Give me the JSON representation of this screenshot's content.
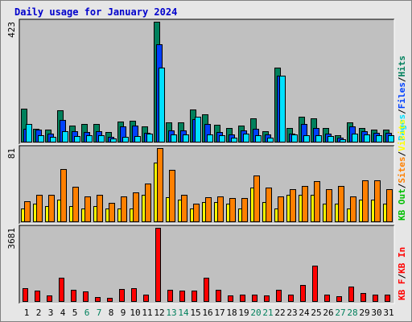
{
  "chart_data": {
    "type": "bar",
    "title": "Daily usage for January 2024",
    "colors": {
      "hits": "#00805c",
      "files": "#0040ff",
      "pages": "#00e0ff",
      "visits": "#ffff00",
      "sites": "#ff8000",
      "kb_in": "#ff0000",
      "kb_out": "#00c000",
      "frame_bg": "#c0c0c0",
      "page_bg": "#e6e6e6",
      "weekend_label": "#00805c",
      "weekday_label": "#000000"
    },
    "days": [
      "1",
      "2",
      "3",
      "4",
      "5",
      "6",
      "7",
      "8",
      "9",
      "10",
      "11",
      "12",
      "13",
      "14",
      "15",
      "16",
      "17",
      "18",
      "19",
      "20",
      "21",
      "22",
      "23",
      "24",
      "25",
      "26",
      "27",
      "28",
      "29",
      "30",
      "31"
    ],
    "weekend_days": [
      6,
      7,
      13,
      14,
      20,
      21,
      27,
      28
    ],
    "panels": [
      {
        "id": "top",
        "ymax_label": "423",
        "ymax": 423,
        "series": [
          {
            "key": "hits",
            "values": [
              118,
              48,
              44,
              112,
              60,
              65,
              65,
              37,
              72,
              77,
              55,
              423,
              70,
              70,
              115,
              100,
              62,
              50,
              60,
              84,
              40,
              262,
              50,
              90,
              85,
              50,
              25,
              70,
              50,
              45,
              45
            ]
          },
          {
            "key": "files",
            "values": [
              48,
              44,
              30,
              78,
              40,
              38,
              40,
              20,
              55,
              58,
              33,
              345,
              43,
              42,
              82,
              65,
              38,
              27,
              43,
              48,
              27,
              235,
              30,
              66,
              50,
              30,
              18,
              55,
              40,
              35,
              35
            ]
          },
          {
            "key": "pages",
            "values": [
              65,
              25,
              20,
              40,
              22,
              25,
              25,
              15,
              20,
              22,
              30,
              262,
              28,
              28,
              90,
              28,
              25,
              18,
              30,
              25,
              18,
              235,
              28,
              25,
              25,
              22,
              12,
              30,
              28,
              25,
              25
            ]
          }
        ],
        "legend": [
          {
            "key": "hits",
            "text": "Hits"
          },
          {
            "key": "sep",
            "text": "/"
          },
          {
            "key": "files",
            "text": "Files"
          },
          {
            "key": "sep",
            "text": "/"
          },
          {
            "key": "pages",
            "text": "Pages"
          }
        ]
      },
      {
        "id": "middle",
        "ymax_label": "81",
        "ymax": 81,
        "series": [
          {
            "key": "visits",
            "values": [
              15,
              20,
              18,
              25,
              18,
              15,
              18,
              15,
              15,
              15,
              30,
              65,
              27,
              25,
              15,
              22,
              22,
              20,
              15,
              38,
              22,
              15,
              30,
              30,
              30,
              20,
              20,
              15,
              25,
              25,
              20
            ]
          },
          {
            "key": "sites",
            "values": [
              23,
              30,
              30,
              58,
              39,
              28,
              30,
              21,
              28,
              33,
              42,
              81,
              57,
              30,
              20,
              27,
              28,
              26,
              26,
              51,
              38,
              28,
              36,
              40,
              45,
              36,
              40,
              28,
              46,
              46,
              36
            ]
          }
        ],
        "legend": [
          {
            "key": "visits",
            "text": "Visits"
          },
          {
            "key": "sep",
            "text": "/"
          },
          {
            "key": "sites",
            "text": "Sites"
          },
          {
            "key": "sep",
            "text": "/"
          },
          {
            "key": "kb_out",
            "text": "KB Out"
          }
        ]
      },
      {
        "id": "bottom",
        "ymax_label": "3681",
        "ymax": 3681,
        "series": [
          {
            "key": "kb_in",
            "values": [
              700,
              550,
              330,
              1210,
              620,
              520,
              230,
              200,
              660,
              680,
              360,
              3681,
              620,
              580,
              580,
              1210,
              610,
              320,
              350,
              380,
              340,
              600,
              350,
              850,
              1800,
              350,
              270,
              780,
              430,
              380,
              380
            ]
          }
        ],
        "legend": [
          {
            "key": "kb_in",
            "text": "KB In"
          },
          {
            "key": "sep",
            "text": "/"
          },
          {
            "key": "kb_in",
            "text": "KB F"
          }
        ]
      }
    ]
  }
}
